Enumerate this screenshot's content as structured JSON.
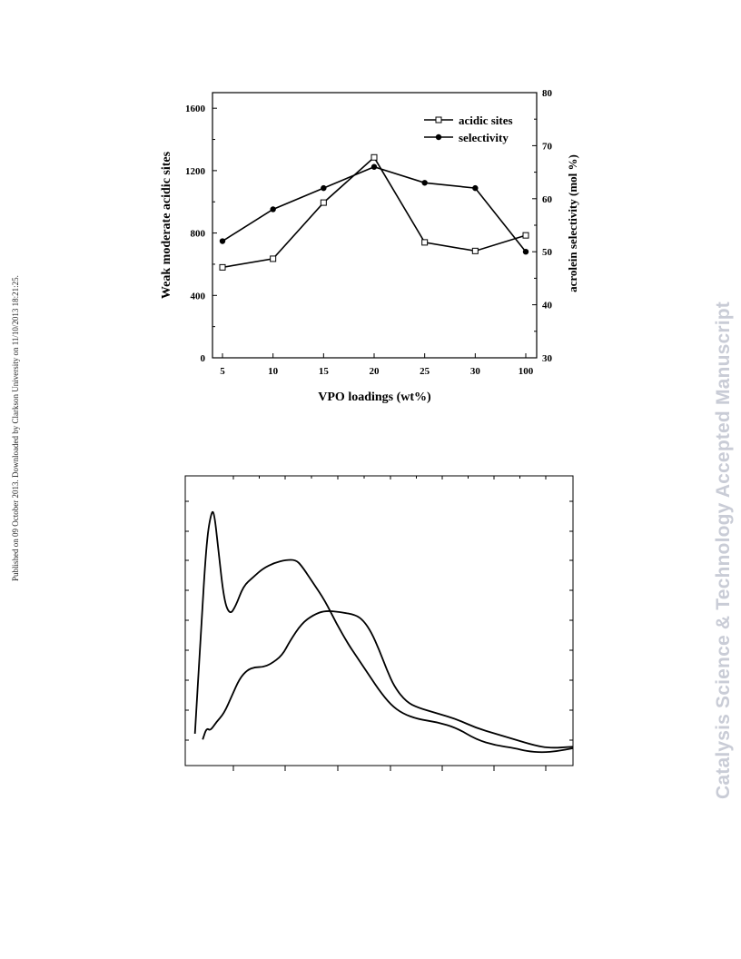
{
  "side_note": "Published on 09 October 2013. Downloaded by Clarkson University on 11/10/2013 18:21:25.",
  "watermark": "Catalysis Science & Technology Accepted Manuscript",
  "chart_data": [
    {
      "type": "line",
      "title": "",
      "xlabel": "VPO loadings (wt%)",
      "ylabel": "Weak moderate acidic sites",
      "ylabel_right": "acrolein selectivity (mol %)",
      "categories": [
        "5",
        "10",
        "15",
        "20",
        "25",
        "30",
        "100"
      ],
      "ylim": [
        0,
        1700
      ],
      "ylim_right": [
        30,
        80
      ],
      "yticks": [
        0,
        400,
        800,
        1200,
        1600
      ],
      "yticks_right": [
        30,
        40,
        50,
        60,
        70,
        80
      ],
      "legend_position": "top-right",
      "series": [
        {
          "name": "acidic sites",
          "axis": "left",
          "marker": "open-square",
          "values": [
            580,
            635,
            995,
            1285,
            740,
            685,
            785
          ]
        },
        {
          "name": "selectivity",
          "axis": "right",
          "marker": "filled-circle",
          "values": [
            52,
            58,
            62,
            66,
            63,
            62,
            50
          ]
        }
      ]
    },
    {
      "type": "line",
      "title": "",
      "xlabel": "",
      "ylabel": "",
      "x_range": [
        0,
        1
      ],
      "y_range": [
        0,
        1
      ],
      "series": [
        {
          "values": [
            [
              0.025,
              0.11
            ],
            [
              0.04,
              0.45
            ],
            [
              0.055,
              0.78
            ],
            [
              0.068,
              0.88
            ],
            [
              0.075,
              0.87
            ],
            [
              0.085,
              0.75
            ],
            [
              0.1,
              0.57
            ],
            [
              0.115,
              0.52
            ],
            [
              0.13,
              0.55
            ],
            [
              0.15,
              0.62
            ],
            [
              0.175,
              0.65
            ],
            [
              0.2,
              0.68
            ],
            [
              0.23,
              0.7
            ],
            [
              0.26,
              0.71
            ],
            [
              0.285,
              0.71
            ],
            [
              0.3,
              0.69
            ],
            [
              0.33,
              0.63
            ],
            [
              0.36,
              0.57
            ],
            [
              0.39,
              0.49
            ],
            [
              0.42,
              0.42
            ],
            [
              0.44,
              0.38
            ],
            [
              0.46,
              0.34
            ],
            [
              0.48,
              0.3
            ],
            [
              0.5,
              0.26
            ],
            [
              0.53,
              0.21
            ],
            [
              0.56,
              0.18
            ],
            [
              0.6,
              0.16
            ],
            [
              0.65,
              0.15
            ],
            [
              0.7,
              0.13
            ],
            [
              0.75,
              0.09
            ],
            [
              0.8,
              0.07
            ],
            [
              0.85,
              0.06
            ],
            [
              0.88,
              0.05
            ],
            [
              0.92,
              0.045
            ],
            [
              0.96,
              0.05
            ],
            [
              1.0,
              0.06
            ]
          ]
        },
        {
          "values": [
            [
              0.045,
              0.09
            ],
            [
              0.055,
              0.13
            ],
            [
              0.065,
              0.12
            ],
            [
              0.08,
              0.15
            ],
            [
              0.1,
              0.18
            ],
            [
              0.12,
              0.24
            ],
            [
              0.14,
              0.3
            ],
            [
              0.16,
              0.33
            ],
            [
              0.18,
              0.34
            ],
            [
              0.2,
              0.34
            ],
            [
              0.22,
              0.35
            ],
            [
              0.25,
              0.38
            ],
            [
              0.27,
              0.43
            ],
            [
              0.3,
              0.49
            ],
            [
              0.33,
              0.52
            ],
            [
              0.36,
              0.535
            ],
            [
              0.4,
              0.53
            ],
            [
              0.44,
              0.52
            ],
            [
              0.46,
              0.5
            ],
            [
              0.48,
              0.46
            ],
            [
              0.5,
              0.4
            ],
            [
              0.52,
              0.33
            ],
            [
              0.54,
              0.27
            ],
            [
              0.57,
              0.22
            ],
            [
              0.6,
              0.2
            ],
            [
              0.65,
              0.18
            ],
            [
              0.7,
              0.16
            ],
            [
              0.75,
              0.13
            ],
            [
              0.8,
              0.11
            ],
            [
              0.85,
              0.09
            ],
            [
              0.9,
              0.07
            ],
            [
              0.94,
              0.06
            ],
            [
              1.0,
              0.065
            ]
          ]
        }
      ]
    }
  ]
}
